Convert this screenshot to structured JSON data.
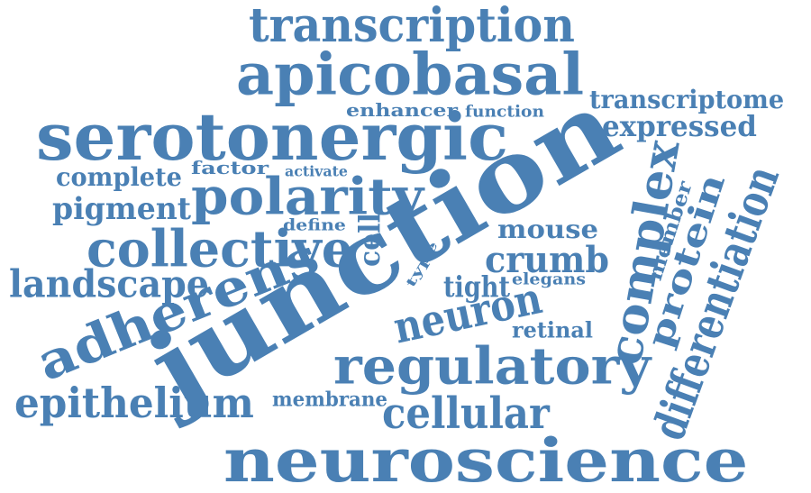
{
  "accent_color": "#4a80b4",
  "words": [
    "transcription",
    "apicobasal",
    "transcriptome",
    "enhancer",
    "function",
    "expressed",
    "serotonergic",
    "complete",
    "factor",
    "activate",
    "polarity",
    "pigment",
    "define",
    "cell",
    "mouse",
    "collective",
    "crumb",
    "type",
    "landscape",
    "tight",
    "elegans",
    "adherens",
    "neuron",
    "retinal",
    "junction",
    "regulatory",
    "complex",
    "protein",
    "member",
    "differentiation",
    "epithelium",
    "membrane",
    "cellular",
    "neuroscience"
  ]
}
